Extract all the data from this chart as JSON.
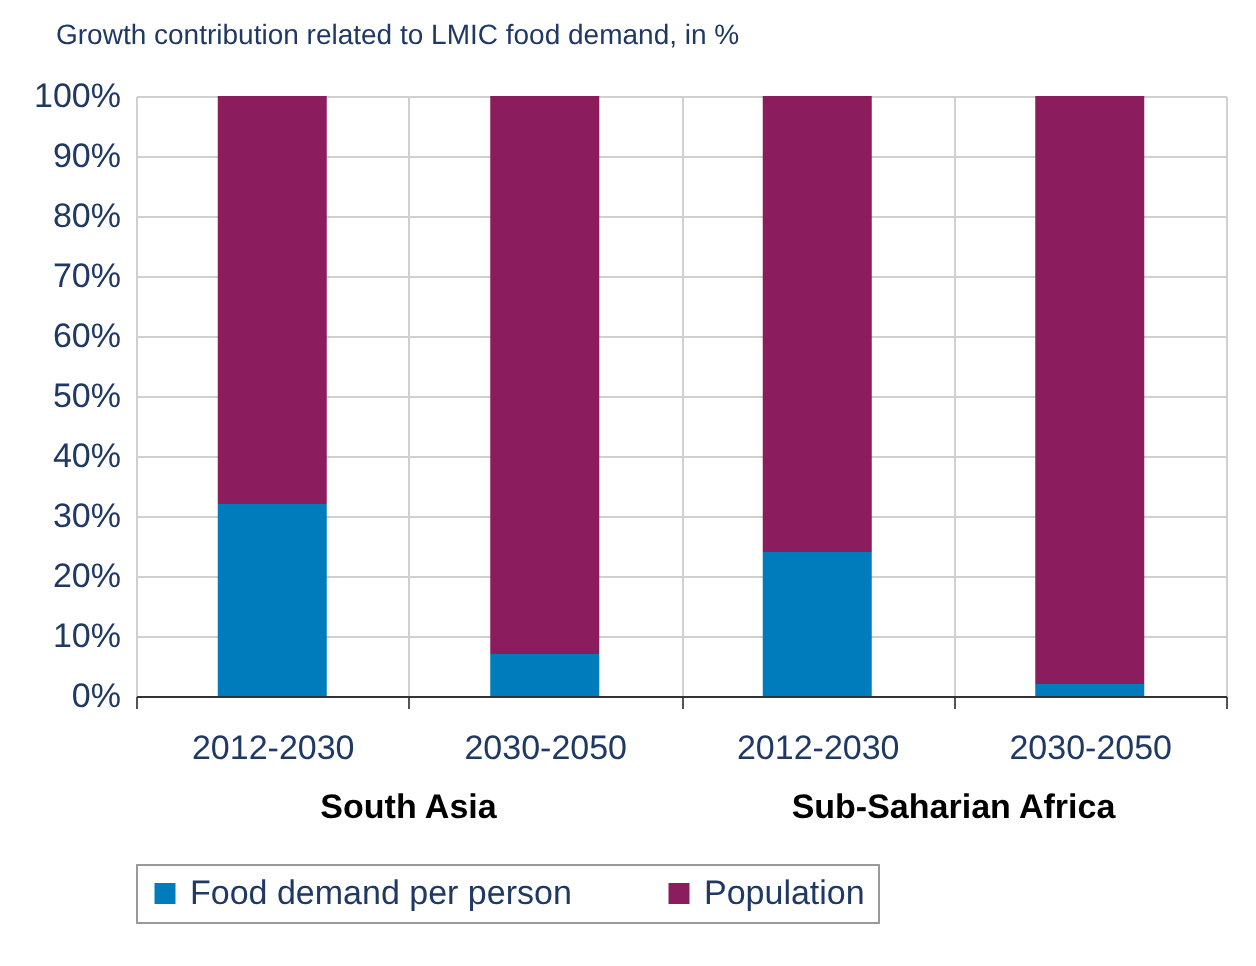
{
  "chart_data": {
    "type": "bar",
    "title": "Growth contribution related to LMIC food demand, in %",
    "categories": [
      "2012-2030",
      "2030-2050",
      "2012-2030",
      "2030-2050"
    ],
    "stacked": true,
    "series": [
      {
        "name": "Food demand per person",
        "color": "#007bbb",
        "values": [
          32,
          7,
          24,
          2
        ]
      },
      {
        "name": "Population",
        "color": "#8b1c5e",
        "values": [
          68,
          93,
          76,
          98
        ]
      }
    ],
    "ylim": [
      0,
      100
    ],
    "yticks": [
      {
        "value": 0,
        "label": "0%"
      },
      {
        "value": 10,
        "label": "10%"
      },
      {
        "value": 20,
        "label": "20%"
      },
      {
        "value": 30,
        "label": "30%"
      },
      {
        "value": 40,
        "label": "40%"
      },
      {
        "value": 50,
        "label": "50%"
      },
      {
        "value": 60,
        "label": "60%"
      },
      {
        "value": 70,
        "label": "70%"
      },
      {
        "value": 80,
        "label": "80%"
      },
      {
        "value": 90,
        "label": "90%"
      },
      {
        "value": 100,
        "label": "100%"
      }
    ],
    "annotations": [
      "South Asia",
      "Sub-Saharian Africa"
    ],
    "grid": true,
    "legend": "bottom"
  }
}
